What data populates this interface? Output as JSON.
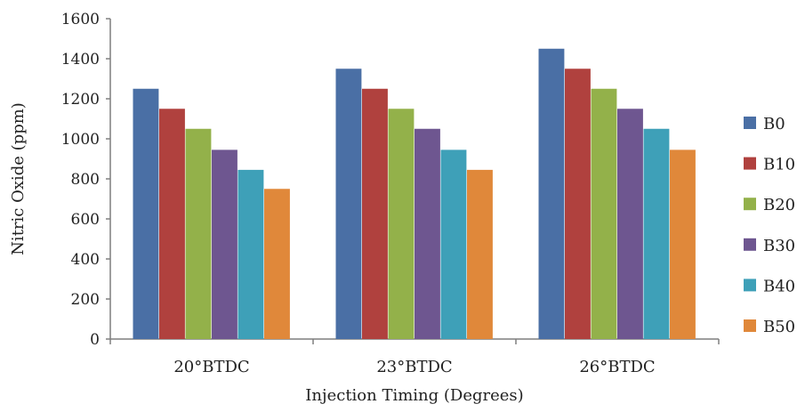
{
  "chart_data": {
    "type": "bar",
    "title": "",
    "xlabel": "Injection Timing (Degrees)",
    "ylabel": "Nitric Oxide (ppm)",
    "categories": [
      "20°BTDC",
      "23°BTDC",
      "26°BTDC"
    ],
    "ylim": [
      0,
      1600
    ],
    "yticks": [
      "0",
      "200",
      "400",
      "600",
      "800",
      "1000",
      "1200",
      "1400",
      "1600"
    ],
    "grid": false,
    "legend_position": "right",
    "series": [
      {
        "name": "B0",
        "color": "#4a6fa5",
        "values": [
          1250,
          1350,
          1450
        ]
      },
      {
        "name": "B10",
        "color": "#b0413e",
        "values": [
          1150,
          1250,
          1350
        ]
      },
      {
        "name": "B20",
        "color": "#93b14a",
        "values": [
          1050,
          1150,
          1250
        ]
      },
      {
        "name": "B30",
        "color": "#6e5690",
        "values": [
          945,
          1050,
          1150
        ]
      },
      {
        "name": "B40",
        "color": "#3ea0b8",
        "values": [
          845,
          945,
          1050
        ]
      },
      {
        "name": "B50",
        "color": "#e0883a",
        "values": [
          750,
          845,
          945
        ]
      }
    ]
  }
}
